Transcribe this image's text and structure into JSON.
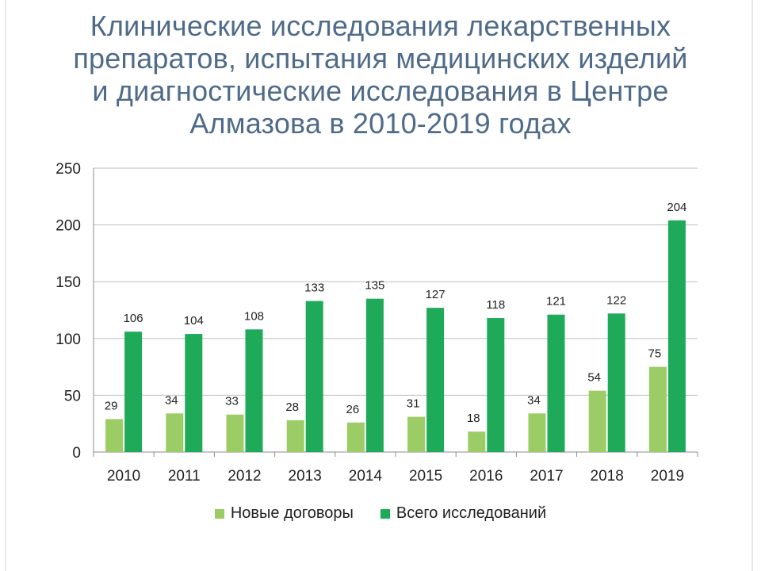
{
  "title": "Клинические исследования лекарственных\nпрепаратов, испытания медицинских изделий\nи диагностические исследования в Центре\nАлмазова в 2010-2019 годах",
  "colors": {
    "new_contracts": "#9ccc65",
    "total_studies": "#1faa59",
    "title": "#4f6b8a",
    "grid": "#bfbfbf"
  },
  "chart_data": {
    "type": "bar",
    "categories": [
      "2010",
      "2011",
      "2012",
      "2013",
      "2014",
      "2015",
      "2016",
      "2017",
      "2018",
      "2019"
    ],
    "series": [
      {
        "name": "Новые договоры",
        "values": [
          29,
          34,
          33,
          28,
          26,
          31,
          18,
          34,
          54,
          75
        ]
      },
      {
        "name": "Всего исследований",
        "values": [
          106,
          104,
          108,
          133,
          135,
          127,
          118,
          121,
          122,
          204
        ]
      }
    ],
    "ylim": [
      0,
      250
    ],
    "yticks": [
      0,
      50,
      100,
      150,
      200,
      250
    ],
    "grid": true,
    "legend_position": "bottom"
  }
}
